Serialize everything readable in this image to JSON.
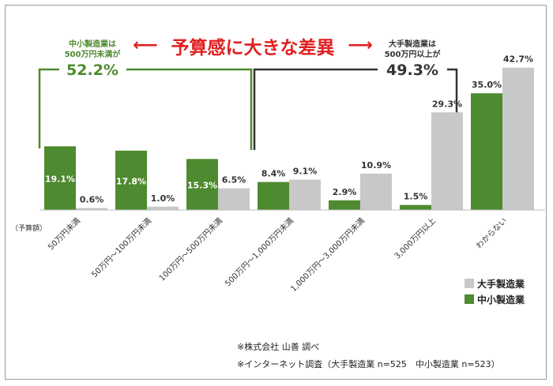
{
  "chart_data": {
    "type": "bar",
    "y_axis_label": "（予算額）",
    "categories": [
      "50万円未満",
      "50万円～100万円未満",
      "100万円～500万円未満",
      "500万円～1,000万円未満",
      "1,000万円～3,000万円未満",
      "3,000万円以上",
      "わからない"
    ],
    "series": [
      {
        "name": "中小製造業",
        "color": "#4e8a2f",
        "values": [
          19.1,
          17.8,
          15.3,
          8.4,
          2.9,
          1.5,
          35.0
        ]
      },
      {
        "name": "大手製造業",
        "color": "#c8c8c8",
        "values": [
          0.6,
          1.0,
          6.5,
          9.1,
          10.9,
          29.3,
          42.7
        ]
      }
    ],
    "ylim": [
      0,
      45
    ],
    "legend_position": "bottom-right",
    "grid": false
  },
  "annotations": {
    "headline": "予算感に大きな差異",
    "headline_color": "#e02020",
    "small_group": {
      "line1": "中小製造業は",
      "line2": "500万円未満が",
      "value": "52.2%"
    },
    "large_group": {
      "line1": "大手製造業は",
      "line2": "500万円以上が",
      "value": "49.3%"
    }
  },
  "footer": {
    "source": "※株式会社 山善 調べ",
    "survey": "※インターネット調査（大手製造業 n=525　中小製造業 n=523）"
  }
}
